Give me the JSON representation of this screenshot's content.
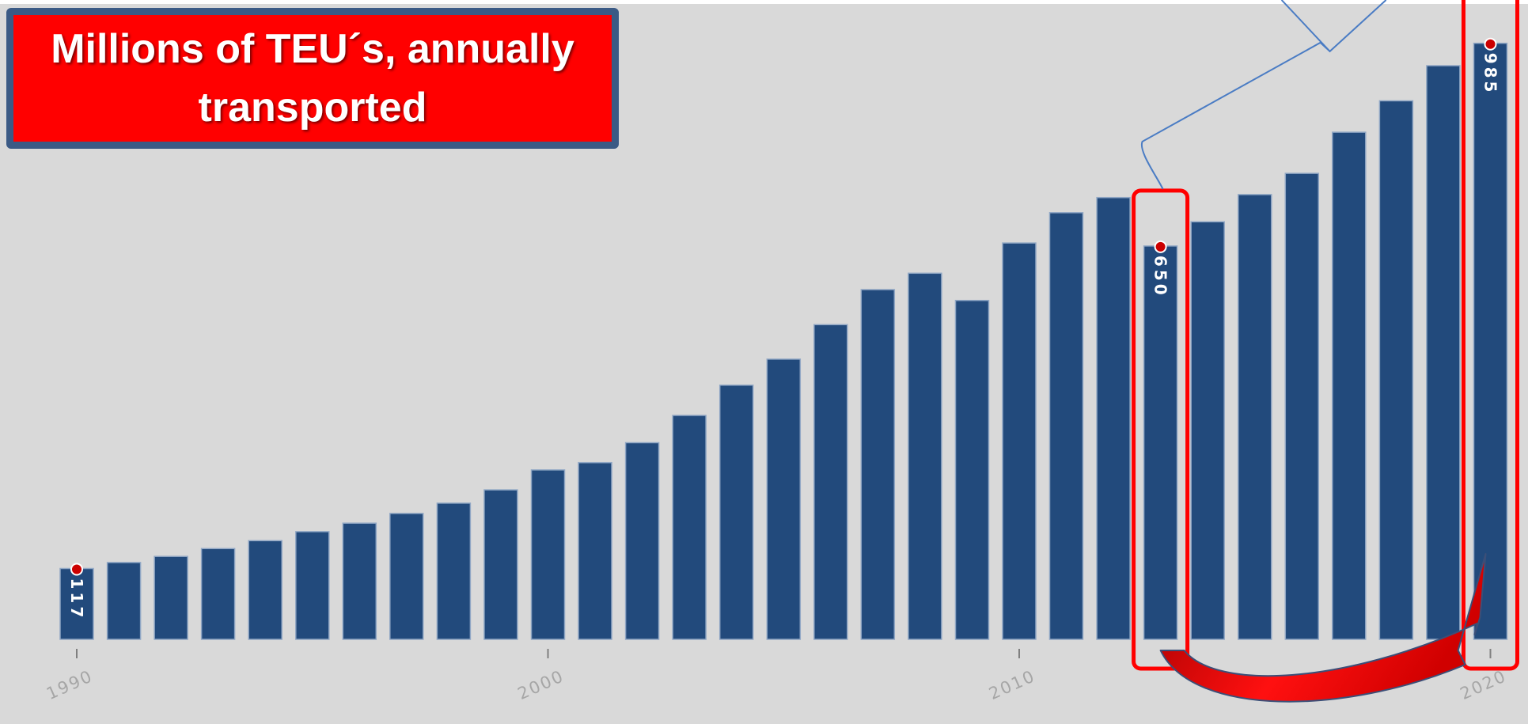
{
  "title": "Millions of TEU´s, annually transported",
  "colors": {
    "background": "#d9d9d9",
    "bar": "#224a7c",
    "bar_edge": "#8fa6c4",
    "highlight": "#ff0000",
    "marker": "#cc0000",
    "connector": "#4a7cc4",
    "axis_text": "#a6a6a6"
  },
  "chart_data": {
    "type": "bar",
    "title": "Millions of TEU´s, annually transported",
    "xlabel": "",
    "ylabel": "",
    "ylim": [
      0,
      1050
    ],
    "grid": false,
    "x": [
      1990,
      1991,
      1992,
      1993,
      1994,
      1995,
      1996,
      1997,
      1998,
      1999,
      2000,
      2001,
      2002,
      2003,
      2004,
      2005,
      2006,
      2007,
      2008,
      2009,
      2010,
      2011,
      2012,
      2013,
      2014,
      2015,
      2016,
      2017,
      2018,
      2019,
      2020
    ],
    "values": [
      117,
      127,
      137,
      150,
      163,
      178,
      192,
      208,
      225,
      247,
      280,
      292,
      325,
      370,
      420,
      463,
      520,
      578,
      605,
      560,
      655,
      705,
      730,
      650,
      690,
      735,
      770,
      838,
      890,
      948,
      985
    ],
    "x_tick_labels": [
      "1990",
      "2000",
      "2010",
      "2020"
    ],
    "data_labels": [
      {
        "year": 1990,
        "label": "117"
      },
      {
        "year": 2013,
        "label": "650"
      },
      {
        "year": 2020,
        "label": "985"
      }
    ],
    "highlighted_years": [
      2013,
      2020
    ]
  }
}
